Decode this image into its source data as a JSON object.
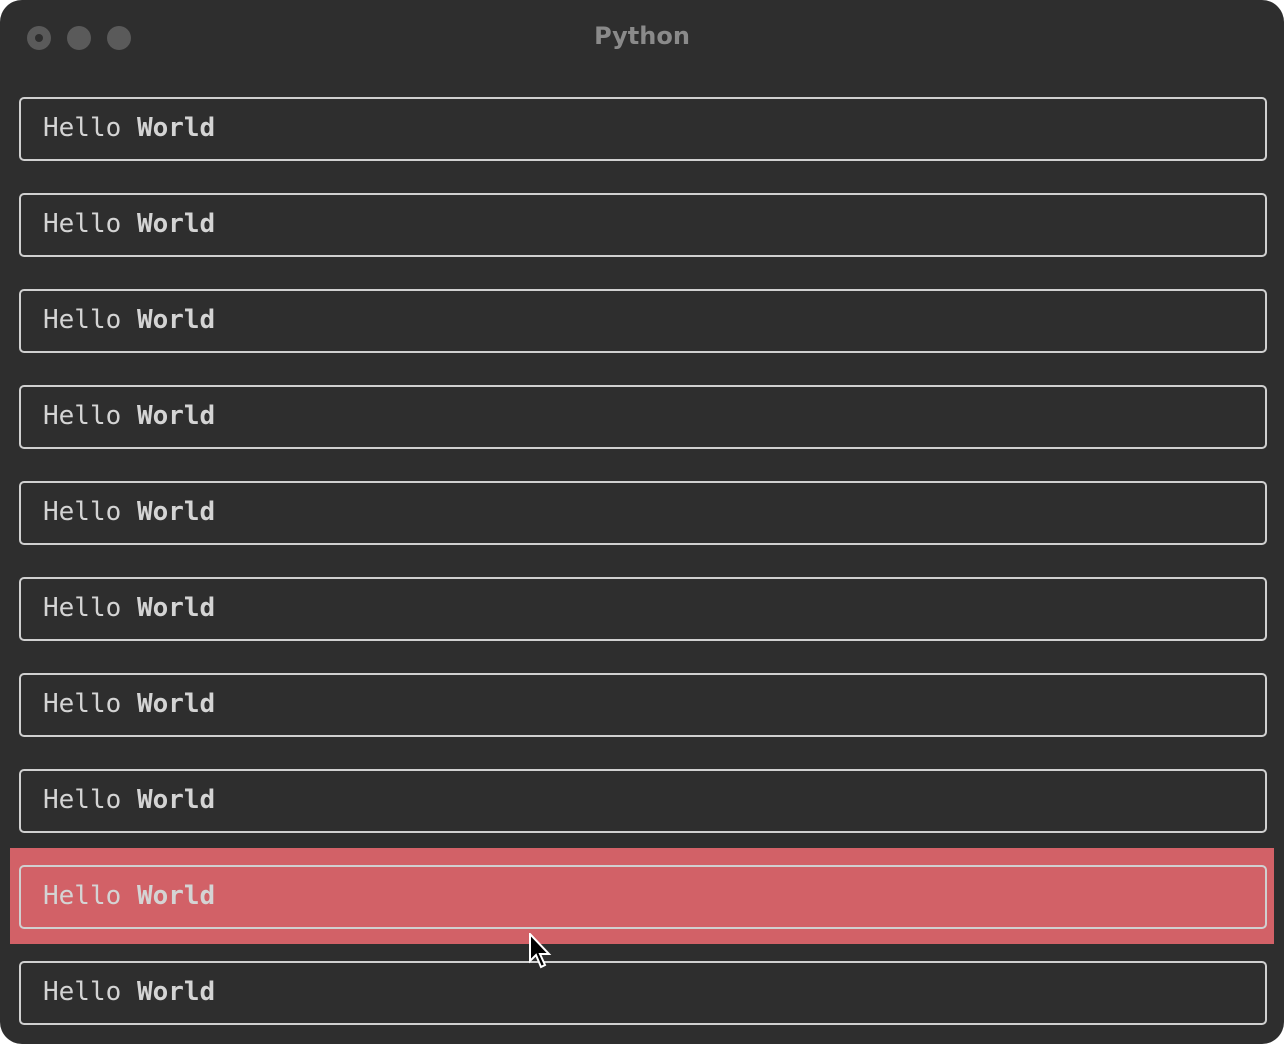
{
  "window": {
    "title": "Python"
  },
  "items": [
    {
      "word1": "Hello",
      "word2": "World"
    },
    {
      "word1": "Hello",
      "word2": "World"
    },
    {
      "word1": "Hello",
      "word2": "World"
    },
    {
      "word1": "Hello",
      "word2": "World"
    },
    {
      "word1": "Hello",
      "word2": "World"
    },
    {
      "word1": "Hello",
      "word2": "World"
    },
    {
      "word1": "Hello",
      "word2": "World"
    },
    {
      "word1": "Hello",
      "word2": "World"
    },
    {
      "word1": "Hello",
      "word2": "World"
    },
    {
      "word1": "Hello",
      "word2": "World"
    }
  ],
  "hover_index": 8,
  "colors": {
    "background": "#2e2e2e",
    "hover": "#d26167",
    "border": "#d0d0d0",
    "text": "#d4d4d4"
  }
}
